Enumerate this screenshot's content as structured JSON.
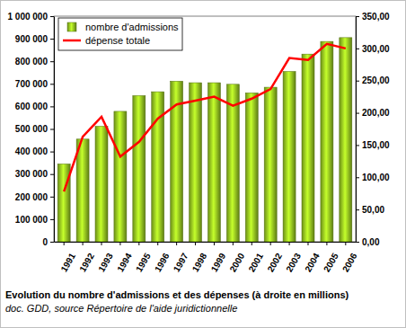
{
  "chart_data": {
    "type": "bar",
    "title": "Evolution du nombre d'admissions et des dépenses (à droite en millions)",
    "subtitle": "doc. GDD, source Répertoire de l'aide juridictionnelle",
    "categories": [
      "1991",
      "1992",
      "1993",
      "1994",
      "1995",
      "1996",
      "1997",
      "1998",
      "1999",
      "2000",
      "2001",
      "2002",
      "2003",
      "2004",
      "2005",
      "2006"
    ],
    "series": [
      {
        "name": "nombre d'admissions",
        "type": "bar",
        "color": "#8fbf1f",
        "values": [
          345000,
          455000,
          512000,
          578000,
          648000,
          665000,
          712000,
          705000,
          705000,
          698000,
          660000,
          685000,
          755000,
          832000,
          888000,
          905000
        ]
      },
      {
        "name": "dépense totale",
        "type": "line",
        "axis": "y2",
        "color": "#ff0000",
        "values": [
          78,
          163,
          194,
          132,
          155,
          191,
          213,
          219,
          225,
          211,
          222,
          237,
          285,
          282,
          307,
          300
        ]
      }
    ],
    "ylim": [
      0,
      1000000
    ],
    "yticks": [
      0,
      {
        "value": 100000,
        "label": "100 000"
      },
      {
        "value": 200000,
        "label": "200 000"
      },
      {
        "value": 300000,
        "label": "300 000"
      },
      {
        "value": 400000,
        "label": "400 000"
      },
      {
        "value": 500000,
        "label": "500 000"
      },
      {
        "value": 600000,
        "label": "600 000"
      },
      {
        "value": 700000,
        "label": "700 000"
      },
      {
        "value": 800000,
        "label": "800 000"
      },
      {
        "value": 900000,
        "label": "900 000"
      },
      {
        "value": 1000000,
        "label": "1 000 000"
      }
    ],
    "y2lim": [
      0,
      350
    ],
    "y2ticks": [
      {
        "value": 0,
        "label": "0,00"
      },
      {
        "value": 50,
        "label": "50,00"
      },
      {
        "value": 100,
        "label": "100,00"
      },
      {
        "value": 150,
        "label": "150,00"
      },
      {
        "value": 200,
        "label": "200,00"
      },
      {
        "value": 250,
        "label": "250,00"
      },
      {
        "value": 300,
        "label": "300,00"
      },
      {
        "value": 350,
        "label": "350,00"
      }
    ],
    "legend": "top-left",
    "grid": false
  }
}
